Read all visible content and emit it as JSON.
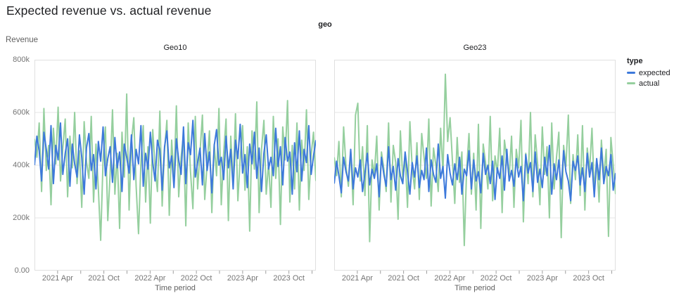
{
  "page": {
    "title": "Expected revenue vs. actual revenue"
  },
  "chart_data": {
    "type": "line",
    "title": "Expected revenue vs. actual revenue",
    "facet_field": "geo",
    "xlabel": "Time period",
    "ylabel": "Revenue",
    "ylim": [
      0,
      800000
    ],
    "values_unit": "thousands",
    "grid": true,
    "y_ticks": [
      "800k",
      "600k",
      "400k",
      "200k",
      "0.00"
    ],
    "y_gridlines_thousands": [
      600,
      400,
      200
    ],
    "x_ticks": {
      "domain_months": 36.5,
      "minor_months": [
        3,
        6,
        9,
        12,
        15,
        18,
        21,
        24,
        27,
        30,
        33,
        36
      ],
      "labels": [
        {
          "text": "2021 Apr",
          "month": 3
        },
        {
          "text": "2021 Oct",
          "month": 9
        },
        {
          "text": "2022 Apr",
          "month": 15
        },
        {
          "text": "2022 Oct",
          "month": 21
        },
        {
          "text": "2023 Apr",
          "month": 27
        },
        {
          "text": "2023 Oct",
          "month": 33
        }
      ]
    },
    "legend": {
      "title": "type",
      "position": "right",
      "entries": [
        {
          "label": "expected",
          "color": "#3d79db"
        },
        {
          "label": "actual",
          "color": "#95cf9e"
        }
      ]
    },
    "colors": {
      "border": "#e0e0e0",
      "gridline": "#e6e6e6",
      "tick": "#9e9e9e"
    },
    "facets": [
      {
        "label": "Geo10",
        "series": [
          {
            "name": "expected",
            "values_thousands": [
              400,
              510,
              455,
              340,
              525,
              460,
              385,
              550,
              330,
              475,
              420,
              560,
              365,
              445,
              500,
              320,
              480,
              405,
              355,
              515,
              430,
              290,
              465,
              520,
              380,
              440,
              310,
              490,
              415,
              545,
              360,
              425,
              470,
              335,
              505,
              390,
              450,
              300,
              480,
              430,
              370,
              515,
              345,
              460,
              405,
              550,
              320,
              445,
              385,
              525,
              410,
              340,
              495,
              455,
              305,
              470,
              530,
              390,
              435,
              315,
              500,
              420,
              365,
              545,
              330,
              485,
              440,
              570,
              355,
              410,
              465,
              325,
              520,
              380,
              450,
              295,
              475,
              535,
              400,
              430,
              345,
              510,
              390,
              460,
              310,
              495,
              425,
              555,
              370,
              440,
              315,
              480,
              405,
              525,
              350,
              465,
              300,
              445,
              515,
              385,
              430,
              360,
              540,
              395,
              470,
              325,
              505,
              415,
              450,
              290,
              485,
              375,
              530,
              340,
              460,
              410,
              550,
              365,
              435,
              495
            ]
          },
          {
            "name": "actual",
            "values_thousands": [
              500,
              430,
              560,
              300,
              615,
              380,
              475,
              250,
              540,
              405,
              620,
              340,
              465,
              575,
              280,
              510,
              390,
              600,
              330,
              455,
              240,
              565,
              415,
              350,
              585,
              260,
              480,
              310,
              115,
              420,
              545,
              190,
              370,
              610,
              290,
              445,
              160,
              525,
              355,
              670,
              230,
              490,
              580,
              320,
              140,
              410,
              550,
              260,
              470,
              180,
              535,
              390,
              300,
              605,
              245,
              460,
              570,
              210,
              495,
              345,
              625,
              280,
              430,
              515,
              170,
              560,
              375,
              235,
              585,
              310,
              450,
              590,
              270,
              405,
              530,
              220,
              480,
              360,
              615,
              250,
              445,
              575,
              190,
              510,
              330,
              595,
              265,
              425,
              550,
              305,
              470,
              150,
              530,
              385,
              640,
              220,
              460,
              570,
              290,
              410,
              240,
              585,
              350,
              500,
              175,
              545,
              420,
              645,
              260,
              475,
              310,
              560,
              230,
              495,
              380,
              610,
              270,
              440,
              525,
              340
            ]
          }
        ]
      },
      {
        "label": "Geo23",
        "series": [
          {
            "name": "expected",
            "values_thousands": [
              330,
              415,
              360,
              295,
              430,
              375,
              340,
              460,
              310,
              390,
              355,
              420,
              300,
              370,
              445,
              325,
              385,
              350,
              405,
              280,
              430,
              365,
              320,
              470,
              345,
              395,
              305,
              425,
              360,
              330,
              450,
              375,
              290,
              410,
              355,
              435,
              315,
              380,
              345,
              465,
              300,
              420,
              365,
              335,
              480,
              350,
              395,
              275,
              440,
              370,
              325,
              405,
              345,
              430,
              290,
              385,
              360,
              455,
              310,
              420,
              340,
              375,
              295,
              445,
              365,
              400,
              330,
              415,
              270,
              390,
              350,
              435,
              305,
              460,
              340,
              380,
              320,
              425,
              355,
              395,
              265,
              440,
              370,
              410,
              300,
              450,
              335,
              385,
              315,
              430,
              360,
              475,
              290,
              405,
              345,
              420,
              310,
              455,
              375,
              340,
              265,
              415,
              380,
              435,
              325,
              390,
              300,
              445,
              355,
              410,
              280,
              425,
              345,
              465,
              330,
              395,
              360,
              440,
              305,
              370
            ]
          },
          {
            "name": "actual",
            "values_thousands": [
              430,
              360,
              490,
              280,
              545,
              395,
              320,
              455,
              250,
              590,
              635,
              340,
              470,
              285,
              550,
              110,
              420,
              365,
              510,
              230,
              450,
              385,
              300,
              560,
              260,
              475,
              410,
              195,
              530,
              345,
              440,
              240,
              565,
              390,
              310,
              485,
              270,
              520,
              430,
              350,
              575,
              245,
              465,
              400,
              300,
              540,
              370,
              745,
              490,
              580,
              415,
              255,
              505,
              335,
              450,
              95,
              380,
              520,
              290,
              445,
              230,
              555,
              160,
              480,
              410,
              310,
              585,
              265,
              435,
              370,
              540,
              220,
              495,
              425,
              355,
              510,
              240,
              460,
              390,
              570,
              185,
              445,
              330,
              600,
              280,
              515,
              405,
              250,
              545,
              365,
              470,
              200,
              560,
              310,
              430,
              525,
              125,
              475,
              395,
              590,
              255,
              440,
              345,
              515,
              285,
              550,
              230,
              465,
              380,
              540,
              305,
              420,
              260,
              495,
              355,
              460,
              130,
              505,
              400,
              290
            ]
          }
        ]
      }
    ]
  }
}
